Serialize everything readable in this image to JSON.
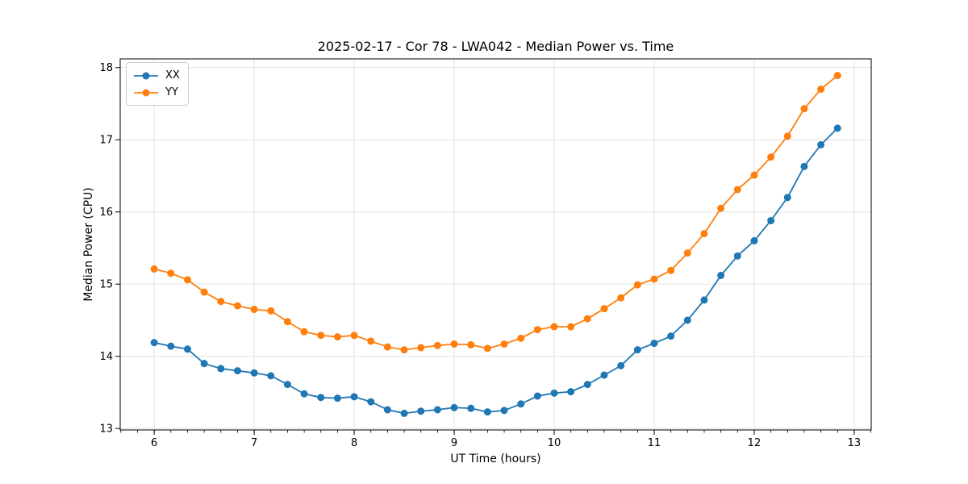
{
  "figure": {
    "title": "2025-02-17 - Cor 78 - LWA042 - Median Power vs. Time",
    "xlabel": "UT Time (hours)",
    "ylabel": "Median Power (CPU)"
  },
  "chart_data": {
    "type": "line",
    "title": "2025-02-17 - Cor 78 - LWA042 - Median Power vs. Time",
    "xlabel": "UT Time (hours)",
    "ylabel": "Median Power (CPU)",
    "xlim": [
      5.66,
      13.17
    ],
    "ylim": [
      12.98,
      18.12
    ],
    "xticks": [
      6,
      7,
      8,
      9,
      10,
      11,
      12,
      13
    ],
    "yticks": [
      13,
      14,
      15,
      16,
      17,
      18
    ],
    "x_minor_tick_step": 0.16667,
    "grid": true,
    "legend_position": "upper left",
    "marker": "circle",
    "x": [
      6.0,
      6.1667,
      6.3333,
      6.5,
      6.6667,
      6.8333,
      7.0,
      7.1667,
      7.3333,
      7.5,
      7.6667,
      7.8333,
      8.0,
      8.1667,
      8.3333,
      8.5,
      8.6667,
      8.8333,
      9.0,
      9.1667,
      9.3333,
      9.5,
      9.6667,
      9.8333,
      10.0,
      10.1667,
      10.3333,
      10.5,
      10.6667,
      10.8333,
      11.0,
      11.1667,
      11.3333,
      11.5,
      11.6667,
      11.8333,
      12.0,
      12.1667,
      12.3333,
      12.5,
      12.6667,
      12.8333
    ],
    "series": [
      {
        "name": "XX",
        "color": "#1f77b4",
        "values": [
          14.19,
          14.14,
          14.1,
          13.9,
          13.83,
          13.8,
          13.77,
          13.73,
          13.61,
          13.48,
          13.43,
          13.42,
          13.44,
          13.37,
          13.26,
          13.21,
          13.24,
          13.26,
          13.29,
          13.28,
          13.23,
          13.25,
          13.34,
          13.45,
          13.49,
          13.51,
          13.61,
          13.74,
          13.87,
          14.09,
          14.18,
          14.28,
          14.5,
          14.78,
          15.12,
          15.39,
          15.6,
          15.88,
          16.2,
          16.63,
          16.93,
          17.16
        ]
      },
      {
        "name": "YY",
        "color": "#ff7f0e",
        "values": [
          15.21,
          15.15,
          15.06,
          14.89,
          14.76,
          14.7,
          14.65,
          14.63,
          14.48,
          14.34,
          14.29,
          14.27,
          14.29,
          14.21,
          14.13,
          14.09,
          14.12,
          14.15,
          14.17,
          14.16,
          14.11,
          14.17,
          14.25,
          14.37,
          14.41,
          14.41,
          14.52,
          14.66,
          14.81,
          14.99,
          15.07,
          15.19,
          15.43,
          15.7,
          16.05,
          16.31,
          16.51,
          16.76,
          17.05,
          17.43,
          17.7,
          17.89
        ]
      }
    ],
    "style": {
      "grid_color": "#e4e4e4",
      "spine_color": "#000000",
      "tick_color": "#000000",
      "background": "#ffffff"
    }
  }
}
